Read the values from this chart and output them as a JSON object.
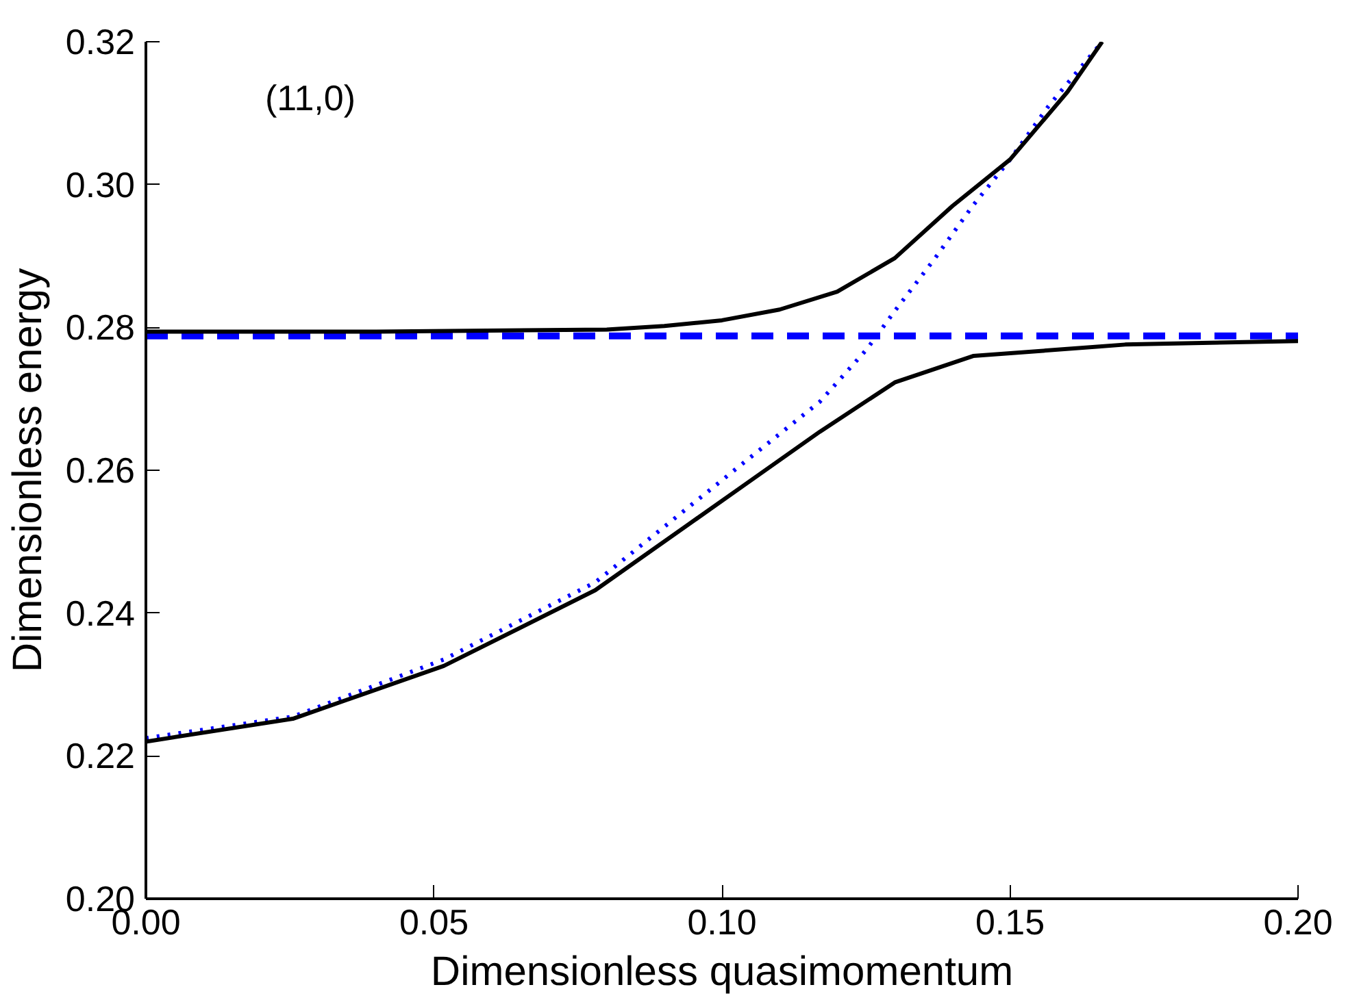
{
  "chart_data": {
    "type": "line",
    "xlabel": "Dimensionless quasimomentum",
    "ylabel": "Dimensionless energy",
    "annotations": [
      "(11,0)"
    ],
    "xlim": [
      0,
      0.2
    ],
    "ylim": [
      0.2,
      0.32
    ],
    "xticks": [
      {
        "value": 0,
        "label": "0.00"
      },
      0.05,
      {
        "value": 0.1,
        "label": "0.10"
      },
      0.15,
      {
        "value": 0.2,
        "label": "0.20"
      }
    ],
    "yticks": [
      {
        "value": 0.2,
        "label": "0.20"
      },
      0.22,
      0.24,
      0.26,
      0.28,
      {
        "value": 0.3,
        "label": "0.30"
      },
      0.32
    ],
    "grid": false,
    "marker": "none",
    "series": [
      {
        "color": "#0000ff",
        "line_style": "dashed",
        "x": [
          0,
          0.2
        ],
        "values": [
          0.2788,
          0.2788
        ]
      },
      {
        "color": "#0000ff",
        "line_style": "dotted",
        "x": [
          0,
          0.0255,
          0.0517,
          0.078,
          0.104,
          0.117,
          0.1252,
          0.13,
          0.137,
          0.1436,
          0.15,
          0.1567,
          0.166
        ],
        "values": [
          0.2225,
          0.2255,
          0.2335,
          0.2443,
          0.2612,
          0.2696,
          0.277,
          0.2823,
          0.2897,
          0.2971,
          0.3035,
          0.311,
          0.32
        ]
      },
      {
        "color": "#000000",
        "line_style": "solid",
        "x": [
          0,
          0.04,
          0.08,
          0.09,
          0.1,
          0.11,
          0.12,
          0.13,
          0.14,
          0.15,
          0.16,
          0.166
        ],
        "values": [
          0.2794,
          0.2794,
          0.2797,
          0.2802,
          0.281,
          0.2825,
          0.285,
          0.2897,
          0.297,
          0.3035,
          0.313,
          0.32
        ]
      },
      {
        "color": "#000000",
        "line_style": "solid",
        "x": [
          0,
          0.0255,
          0.0517,
          0.078,
          0.104,
          0.117,
          0.13,
          0.1436,
          0.17,
          0.2
        ],
        "values": [
          0.222,
          0.2252,
          0.2326,
          0.2432,
          0.258,
          0.2654,
          0.2723,
          0.276,
          0.2776,
          0.2781
        ]
      }
    ]
  }
}
